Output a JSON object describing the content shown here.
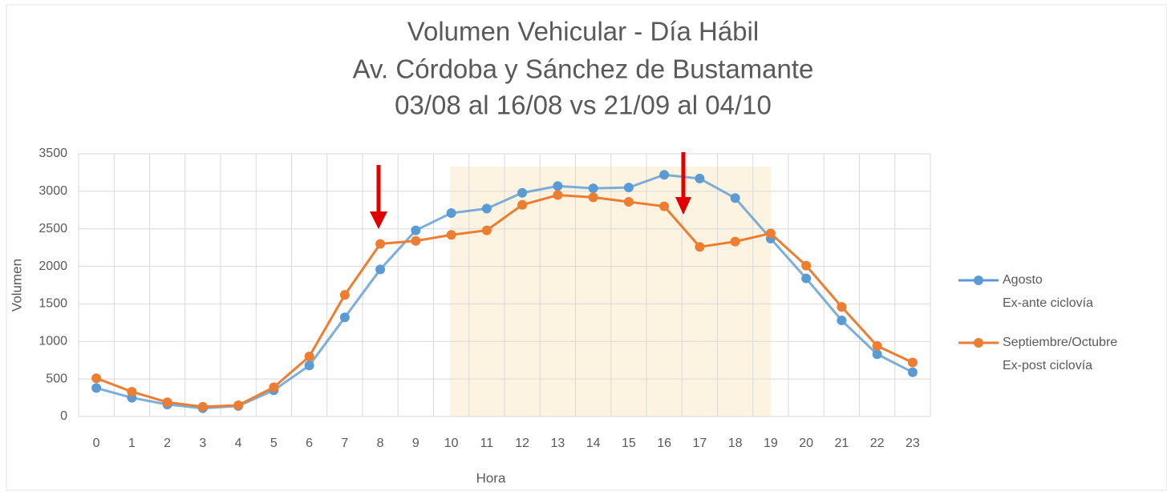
{
  "chart_data": {
    "type": "line",
    "title": [
      "Volumen Vehicular - Día Hábil",
      "Av. Córdoba y Sánchez de Bustamante",
      "03/08 al 16/08 vs 21/09 al 04/10"
    ],
    "x_label": "Hora",
    "y_label": "Volumen",
    "categories": [
      "0",
      "1",
      "2",
      "3",
      "4",
      "5",
      "6",
      "7",
      "8",
      "9",
      "10",
      "11",
      "12",
      "13",
      "14",
      "15",
      "16",
      "17",
      "18",
      "19",
      "20",
      "21",
      "22",
      "23"
    ],
    "series": [
      {
        "name": "Agosto",
        "description": "Ex-ante ciclovía",
        "color": "#5b9bd5",
        "values": [
          380,
          250,
          160,
          110,
          140,
          350,
          680,
          1320,
          1960,
          2480,
          2710,
          2770,
          2980,
          3070,
          3040,
          3050,
          3220,
          3170,
          2910,
          2370,
          1840,
          1280,
          830,
          590
        ]
      },
      {
        "name": "Septiembre/Octubre",
        "description": "Ex-post ciclovía",
        "color": "#ed7d31",
        "values": [
          510,
          330,
          190,
          130,
          150,
          390,
          800,
          1620,
          2300,
          2340,
          2420,
          2480,
          2820,
          2950,
          2920,
          2860,
          2800,
          2260,
          2330,
          2440,
          2010,
          1460,
          940,
          720
        ]
      }
    ],
    "ylim": [
      0,
      3500
    ],
    "yticks": [
      0,
      500,
      1000,
      1500,
      2000,
      2500,
      3000,
      3500
    ],
    "grid": true,
    "legend": "right"
  }
}
